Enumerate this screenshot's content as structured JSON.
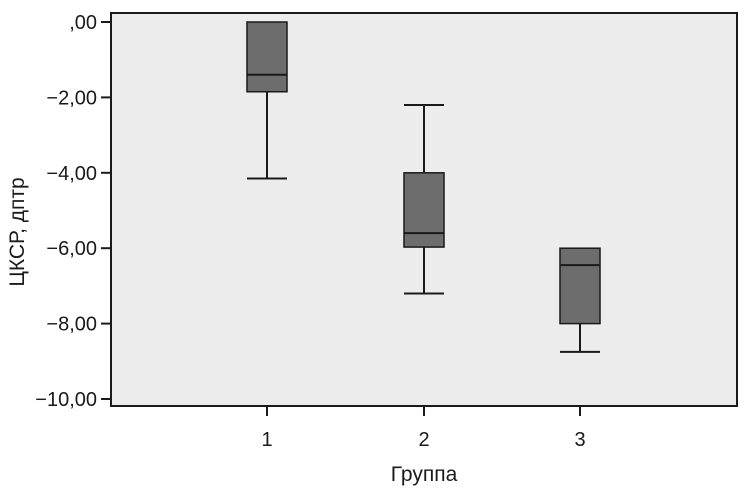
{
  "chart_data": {
    "type": "box",
    "title": "",
    "xlabel": "Группа",
    "ylabel": "ЦКСР, дптр",
    "ylim": [
      -10,
      0
    ],
    "y_ticks": [
      0,
      -2,
      -4,
      -6,
      -8,
      -10
    ],
    "y_tick_labels": [
      ",00",
      "−2,00",
      "−4,00",
      "−6,00",
      "−8,00",
      "−10,00"
    ],
    "categories": [
      "1",
      "2",
      "3"
    ],
    "boxes": [
      {
        "category": "1",
        "whisker_low": -4.15,
        "q1": -1.85,
        "median": -1.4,
        "q3": 0.0,
        "whisker_high": 0.0
      },
      {
        "category": "2",
        "whisker_low": -7.2,
        "q1": -5.97,
        "median": -5.6,
        "q3": -4.0,
        "whisker_high": -2.2
      },
      {
        "category": "3",
        "whisker_low": -8.75,
        "q1": -8.0,
        "median": -6.45,
        "q3": -6.0,
        "whisker_high": -6.0
      }
    ],
    "grid": false,
    "colors": {
      "plot_bg": "#ececec",
      "box_fill": "#6d6d6d",
      "line": "#1a1a1a"
    }
  }
}
